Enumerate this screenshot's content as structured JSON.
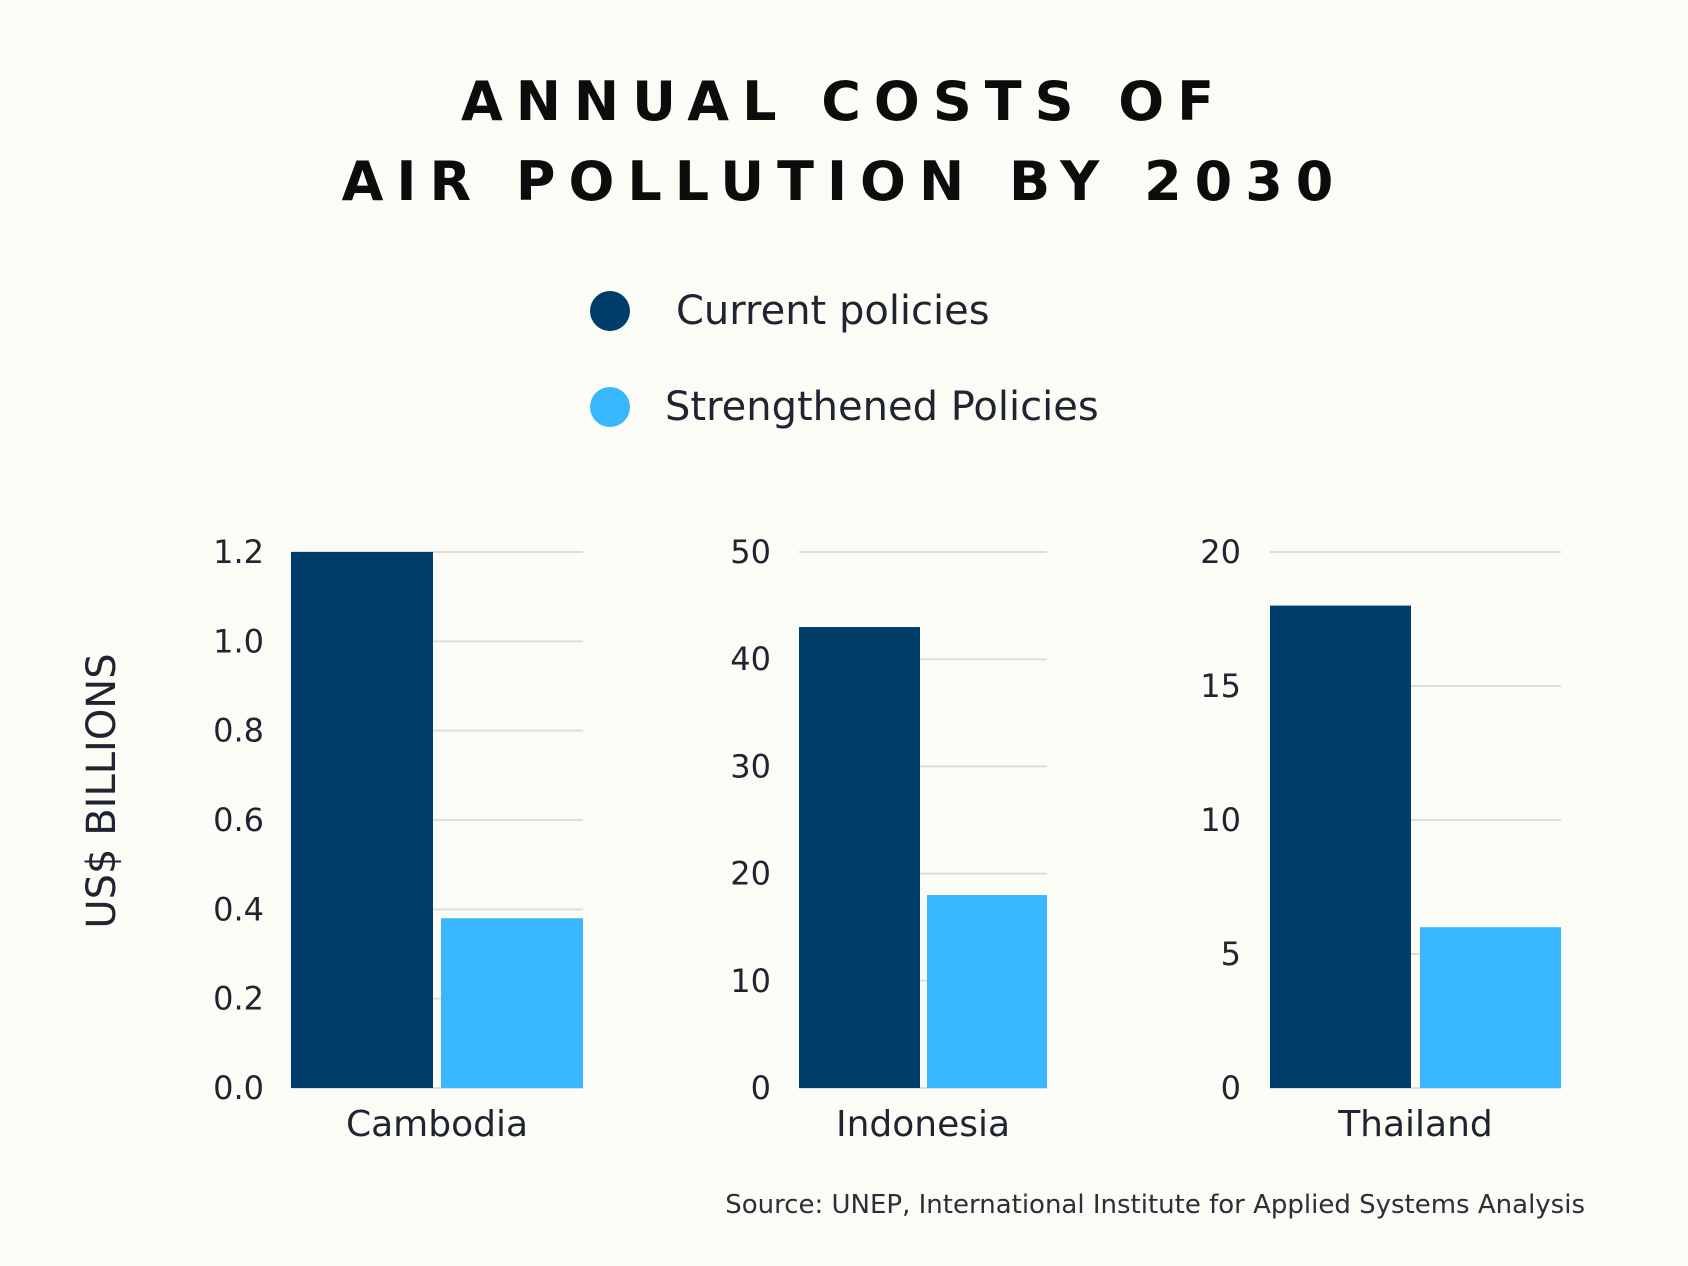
{
  "title_line1": "ANNUAL COSTS OF",
  "title_line2": "AIR POLLUTION BY 2030",
  "source": "Source: UNEP, International Institute for Applied Systems Analysis",
  "colors": {
    "current": "#003d6b",
    "strengthened": "#38b6ff",
    "grid": "#dcdfdb",
    "background": "#fcfcf6"
  },
  "chart_data": {
    "type": "bar",
    "ylabel": "US$ BILLIONS",
    "legend": [
      "Current policies",
      "Strengthened Policies"
    ],
    "legend_placement": "top-center",
    "grid": true,
    "panels": [
      {
        "category": "Cambodia",
        "ylim": [
          0,
          1.2
        ],
        "ticks": [
          "0.0",
          "0.2",
          "0.4",
          "0.6",
          "0.8",
          "1.0",
          "1.2"
        ],
        "tick_values": [
          0,
          0.2,
          0.4,
          0.6,
          0.8,
          1.0,
          1.2
        ],
        "series": [
          {
            "name": "Current policies",
            "value": 1.2
          },
          {
            "name": "Strengthened Policies",
            "value": 0.38
          }
        ]
      },
      {
        "category": "Indonesia",
        "ylim": [
          0,
          50
        ],
        "ticks": [
          "0",
          "10",
          "20",
          "30",
          "40",
          "50"
        ],
        "tick_values": [
          0,
          10,
          20,
          30,
          40,
          50
        ],
        "series": [
          {
            "name": "Current policies",
            "value": 43
          },
          {
            "name": "Strengthened Policies",
            "value": 18
          }
        ]
      },
      {
        "category": "Thailand",
        "ylim": [
          0,
          20
        ],
        "ticks": [
          "0",
          "5",
          "10",
          "15",
          "20"
        ],
        "tick_values": [
          0,
          5,
          10,
          15,
          20
        ],
        "series": [
          {
            "name": "Current policies",
            "value": 18
          },
          {
            "name": "Strengthened Policies",
            "value": 6
          }
        ]
      }
    ]
  }
}
